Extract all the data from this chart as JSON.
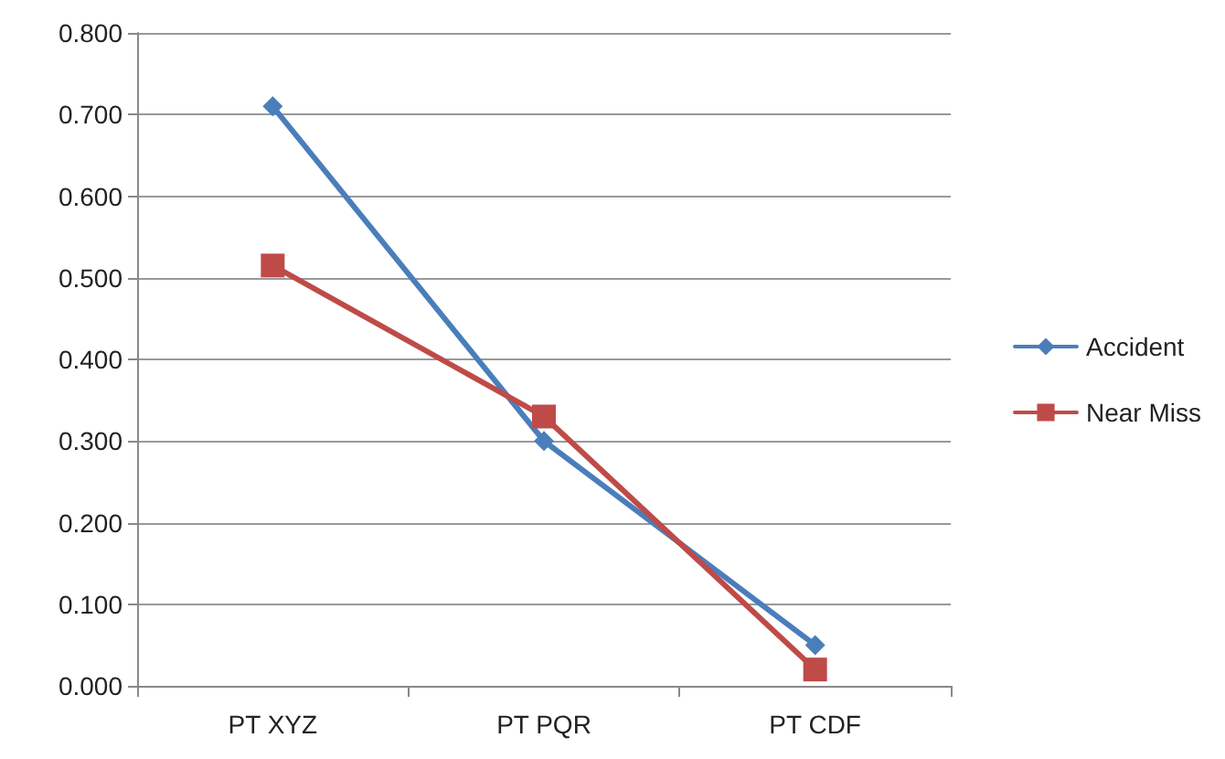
{
  "chart_data": {
    "type": "line",
    "categories": [
      "PT XYZ",
      "PT PQR",
      "PT CDF"
    ],
    "series": [
      {
        "name": "Accident",
        "color": "#4a7ebb",
        "marker": "diamond",
        "values": [
          0.71,
          0.3,
          0.05
        ]
      },
      {
        "name": "Near Miss",
        "color": "#be4b48",
        "marker": "square",
        "values": [
          0.515,
          0.33,
          0.02
        ]
      }
    ],
    "ylim": [
      0,
      0.8
    ],
    "yticks": [
      {
        "value": 0,
        "label": "0.000"
      },
      {
        "value": 0.1,
        "label": "0.100"
      },
      {
        "value": 0.2,
        "label": "0.200"
      },
      {
        "value": 0.3,
        "label": "0.300"
      },
      {
        "value": 0.4,
        "label": "0.400"
      },
      {
        "value": 0.5,
        "label": "0.500"
      },
      {
        "value": 0.6,
        "label": "0.600"
      },
      {
        "value": 0.7,
        "label": "0.700"
      },
      {
        "value": 0.8,
        "label": "0.800"
      }
    ],
    "grid": "y",
    "legend": "right",
    "line_style": "solid"
  }
}
